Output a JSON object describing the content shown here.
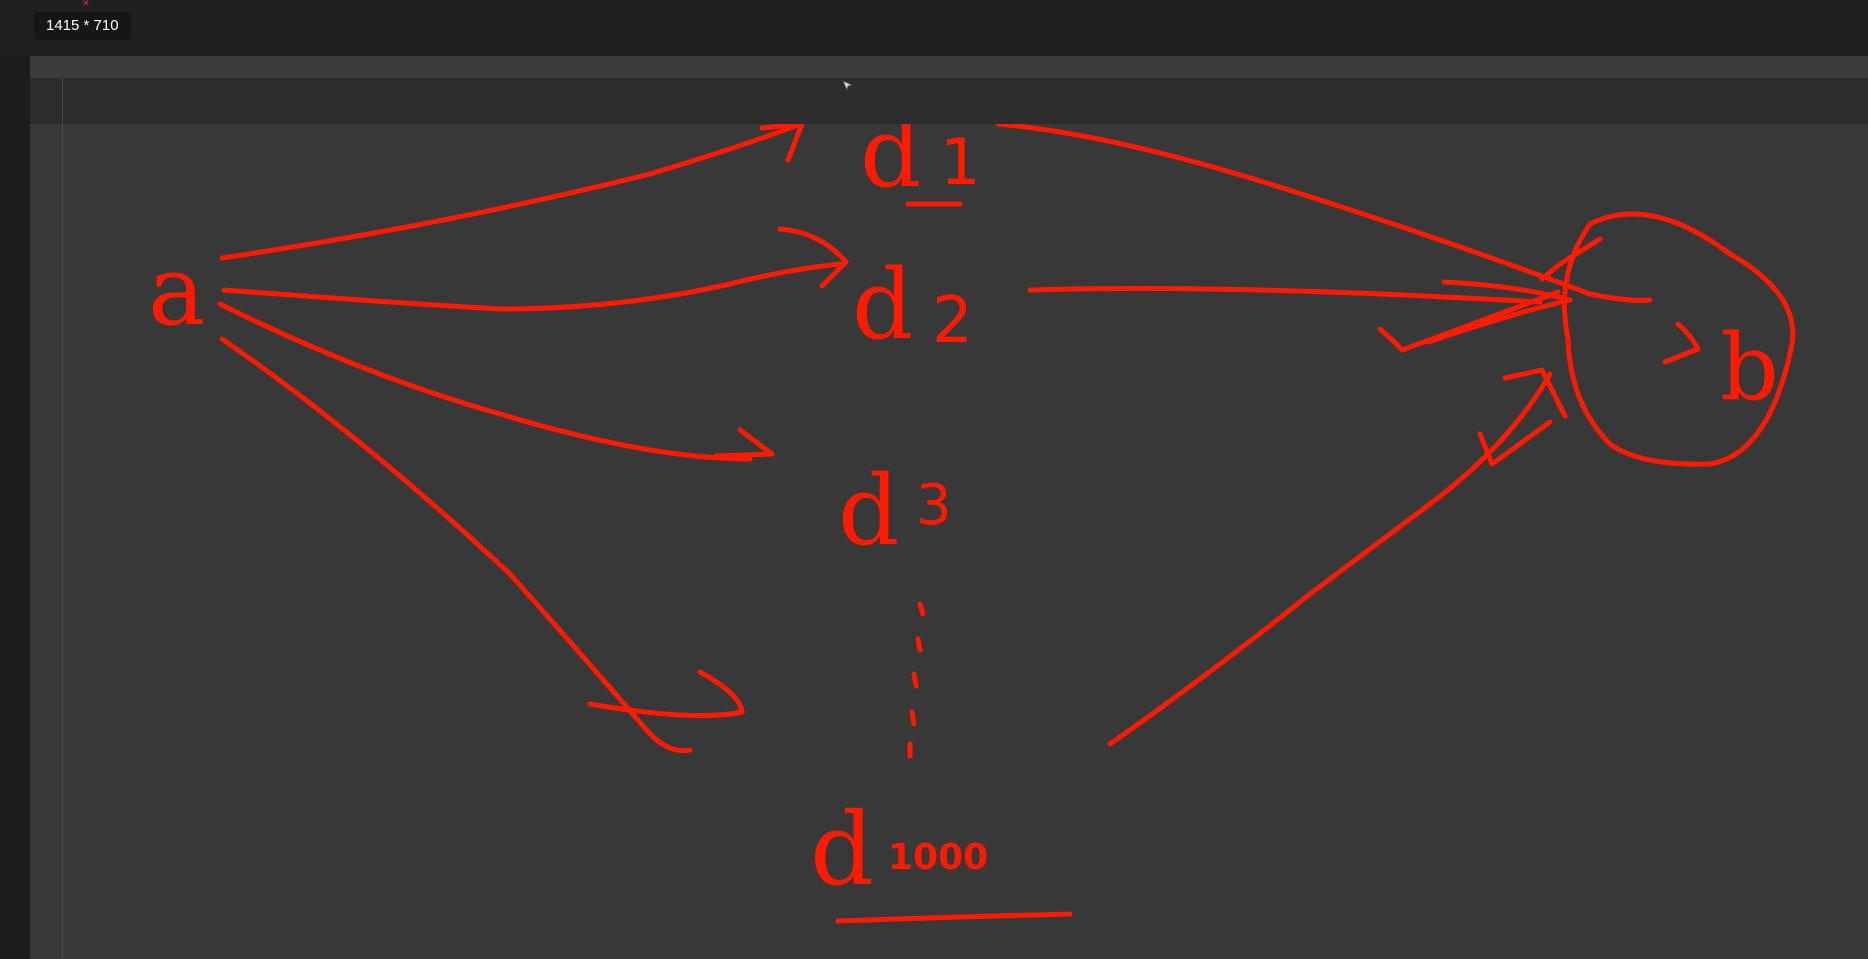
{
  "toolbar": {
    "size_readout": "1415 * 710"
  },
  "colors": {
    "ink": "#ff1a00",
    "canvas": "#383838"
  },
  "drawing": {
    "nodes": {
      "source": "a",
      "d1_letter": "d",
      "d1_sub": "1",
      "d2_letter": "d",
      "d2_sub": "2",
      "d3_letter": "d",
      "d3_sub": "3",
      "dn_letter": "d",
      "dn_sub": "1000",
      "target": "b"
    }
  }
}
